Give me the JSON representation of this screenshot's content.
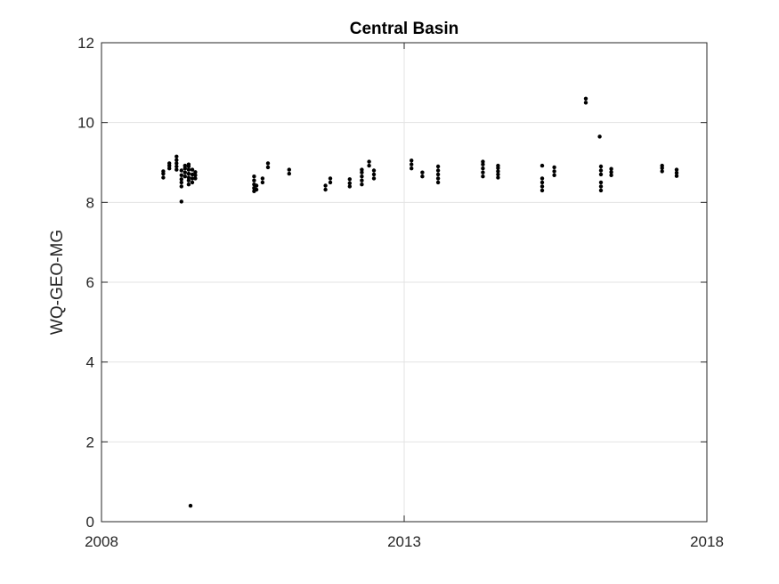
{
  "chart_data": {
    "type": "scatter",
    "title": "Central Basin",
    "xlabel": "",
    "ylabel": "WQ-GEO-MG",
    "xlim": [
      2008,
      2018
    ],
    "ylim": [
      0,
      12
    ],
    "xticks": [
      2008,
      2013,
      2018
    ],
    "xtick_labels": [
      "2008",
      "2013",
      "2018"
    ],
    "yticks": [
      0,
      2,
      4,
      6,
      8,
      10,
      12
    ],
    "ytick_labels": [
      "0",
      "2",
      "4",
      "6",
      "8",
      "10",
      "12"
    ],
    "grid": true,
    "marker_color": "#000000",
    "points": [
      [
        2009.02,
        8.62
      ],
      [
        2009.02,
        8.72
      ],
      [
        2009.02,
        8.78
      ],
      [
        2009.12,
        8.85
      ],
      [
        2009.12,
        8.92
      ],
      [
        2009.12,
        8.98
      ],
      [
        2009.24,
        8.82
      ],
      [
        2009.24,
        8.9
      ],
      [
        2009.24,
        8.98
      ],
      [
        2009.24,
        9.06
      ],
      [
        2009.24,
        9.15
      ],
      [
        2009.32,
        8.4
      ],
      [
        2009.32,
        8.5
      ],
      [
        2009.32,
        8.58
      ],
      [
        2009.32,
        8.68
      ],
      [
        2009.32,
        8.8
      ],
      [
        2009.32,
        8.02
      ],
      [
        2009.38,
        8.65
      ],
      [
        2009.38,
        8.75
      ],
      [
        2009.38,
        8.85
      ],
      [
        2009.38,
        8.92
      ],
      [
        2009.44,
        8.45
      ],
      [
        2009.44,
        8.55
      ],
      [
        2009.44,
        8.62
      ],
      [
        2009.44,
        8.72
      ],
      [
        2009.44,
        8.82
      ],
      [
        2009.44,
        8.9
      ],
      [
        2009.44,
        8.95
      ],
      [
        2009.47,
        0.4
      ],
      [
        2009.5,
        8.5
      ],
      [
        2009.5,
        8.6
      ],
      [
        2009.5,
        8.7
      ],
      [
        2009.5,
        8.82
      ],
      [
        2009.55,
        8.6
      ],
      [
        2009.55,
        8.68
      ],
      [
        2009.55,
        8.76
      ],
      [
        2010.52,
        8.28
      ],
      [
        2010.52,
        8.36
      ],
      [
        2010.52,
        8.45
      ],
      [
        2010.52,
        8.55
      ],
      [
        2010.52,
        8.65
      ],
      [
        2010.56,
        8.32
      ],
      [
        2010.56,
        8.42
      ],
      [
        2010.66,
        8.5
      ],
      [
        2010.66,
        8.6
      ],
      [
        2010.75,
        8.88
      ],
      [
        2010.75,
        8.98
      ],
      [
        2011.1,
        8.72
      ],
      [
        2011.1,
        8.82
      ],
      [
        2011.7,
        8.32
      ],
      [
        2011.7,
        8.42
      ],
      [
        2011.78,
        8.5
      ],
      [
        2011.78,
        8.6
      ],
      [
        2012.1,
        8.4
      ],
      [
        2012.1,
        8.48
      ],
      [
        2012.1,
        8.58
      ],
      [
        2012.3,
        8.45
      ],
      [
        2012.3,
        8.55
      ],
      [
        2012.3,
        8.65
      ],
      [
        2012.3,
        8.75
      ],
      [
        2012.3,
        8.82
      ],
      [
        2012.42,
        8.92
      ],
      [
        2012.42,
        9.02
      ],
      [
        2012.5,
        8.6
      ],
      [
        2012.5,
        8.7
      ],
      [
        2012.5,
        8.8
      ],
      [
        2013.12,
        8.85
      ],
      [
        2013.12,
        8.95
      ],
      [
        2013.12,
        9.05
      ],
      [
        2013.3,
        8.65
      ],
      [
        2013.3,
        8.75
      ],
      [
        2013.56,
        8.5
      ],
      [
        2013.56,
        8.6
      ],
      [
        2013.56,
        8.7
      ],
      [
        2013.56,
        8.8
      ],
      [
        2013.56,
        8.9
      ],
      [
        2014.3,
        8.65
      ],
      [
        2014.3,
        8.75
      ],
      [
        2014.3,
        8.85
      ],
      [
        2014.3,
        8.95
      ],
      [
        2014.3,
        9.02
      ],
      [
        2014.55,
        8.62
      ],
      [
        2014.55,
        8.7
      ],
      [
        2014.55,
        8.78
      ],
      [
        2014.55,
        8.86
      ],
      [
        2014.55,
        8.92
      ],
      [
        2015.28,
        8.3
      ],
      [
        2015.28,
        8.4
      ],
      [
        2015.28,
        8.5
      ],
      [
        2015.28,
        8.6
      ],
      [
        2015.28,
        8.92
      ],
      [
        2015.48,
        8.68
      ],
      [
        2015.48,
        8.78
      ],
      [
        2015.48,
        8.88
      ],
      [
        2016.0,
        10.5
      ],
      [
        2016.0,
        10.6
      ],
      [
        2016.23,
        9.65
      ],
      [
        2016.25,
        8.3
      ],
      [
        2016.25,
        8.4
      ],
      [
        2016.25,
        8.5
      ],
      [
        2016.25,
        8.7
      ],
      [
        2016.25,
        8.8
      ],
      [
        2016.25,
        8.9
      ],
      [
        2016.42,
        8.68
      ],
      [
        2016.42,
        8.76
      ],
      [
        2016.42,
        8.84
      ],
      [
        2017.26,
        8.78
      ],
      [
        2017.26,
        8.86
      ],
      [
        2017.26,
        8.92
      ],
      [
        2017.5,
        8.66
      ],
      [
        2017.5,
        8.74
      ],
      [
        2017.5,
        8.82
      ]
    ]
  }
}
